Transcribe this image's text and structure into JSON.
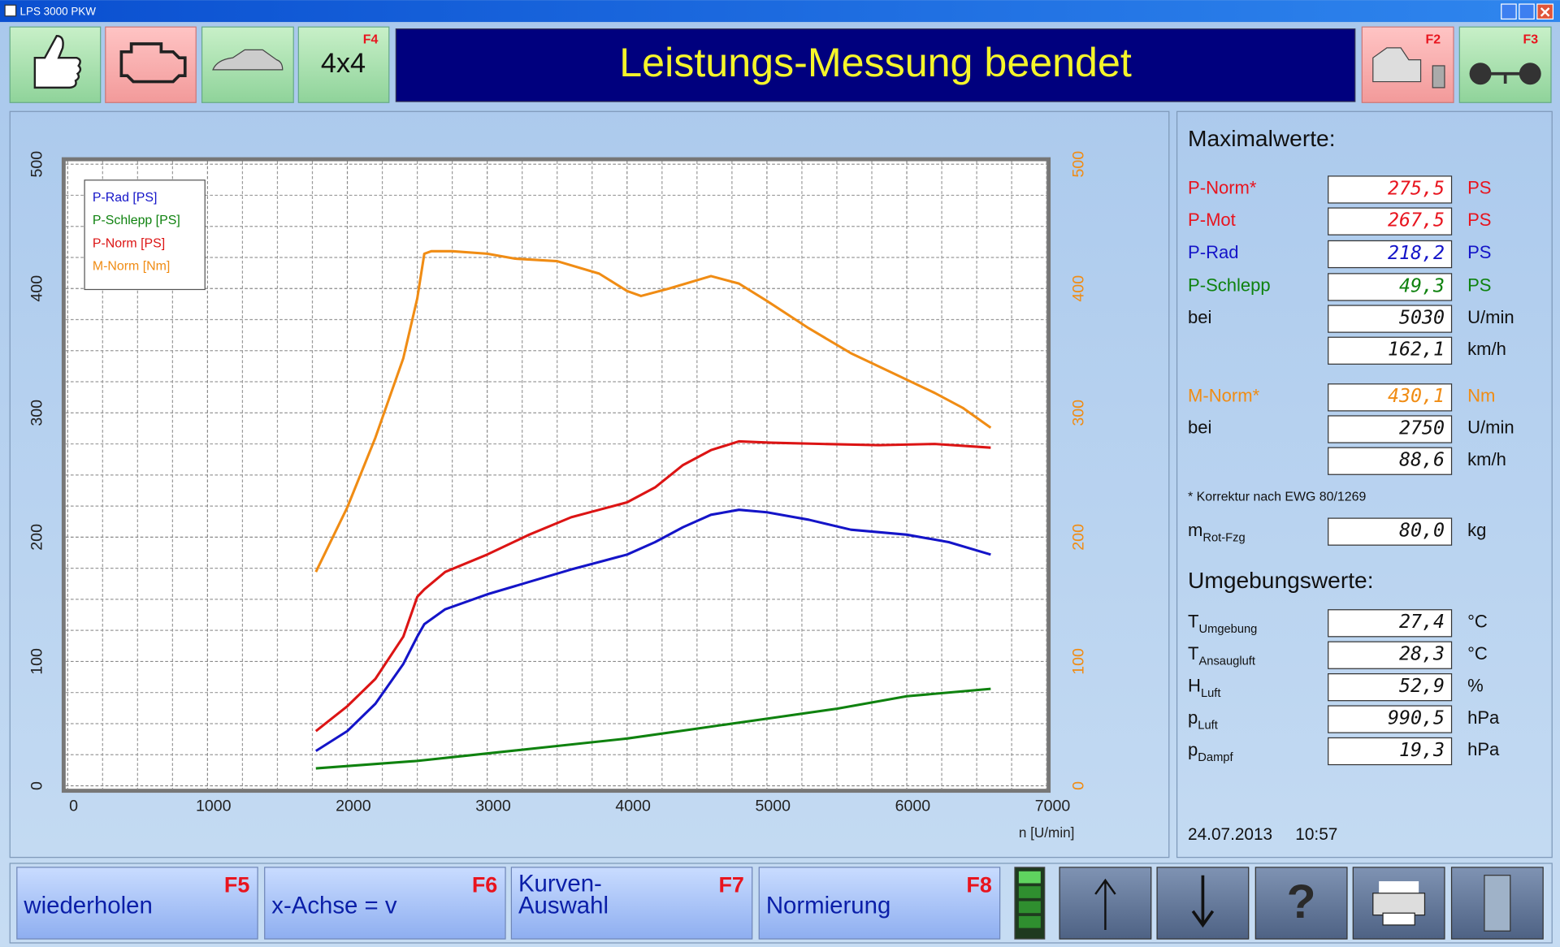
{
  "window": {
    "title": "LPS 3000 PKW"
  },
  "toolbar": {
    "f4_button": {
      "label": "4x4",
      "key": "F4"
    },
    "f2_key": "F2",
    "f3_key": "F3"
  },
  "status": "Leistungs-Messung beendet",
  "chart_data": {
    "type": "line",
    "x_label": "n [U/min]",
    "xlim": [
      0,
      7000
    ],
    "xticks": [
      0,
      1000,
      2000,
      3000,
      4000,
      5000,
      6000,
      7000
    ],
    "ylim": [
      0,
      500
    ],
    "yticks": [
      0,
      100,
      200,
      300,
      400,
      500
    ],
    "y2lim": [
      0,
      500
    ],
    "y2ticks": [
      0,
      100,
      200,
      300,
      400,
      500
    ],
    "grid": true,
    "legend": "top-left",
    "series": [
      {
        "name": "P-Rad [PS]",
        "color": "#1414c8",
        "x": [
          1775,
          2000,
          2200,
          2400,
          2500,
          2550,
          2700,
          3000,
          3300,
          3600,
          3800,
          4000,
          4200,
          4400,
          4600,
          4800,
          5000,
          5300,
          5600,
          6000,
          6300,
          6600
        ],
        "values": [
          28,
          44,
          66,
          98,
          120,
          130,
          142,
          154,
          164,
          174,
          180,
          186,
          196,
          208,
          218,
          222,
          220,
          214,
          206,
          202,
          196,
          186
        ]
      },
      {
        "name": "P-Schlepp [PS]",
        "color": "#0f820f",
        "x": [
          1775,
          2500,
          3000,
          3500,
          4000,
          4500,
          5000,
          5500,
          6000,
          6600
        ],
        "values": [
          14,
          20,
          26,
          32,
          38,
          46,
          54,
          62,
          72,
          78
        ]
      },
      {
        "name": "P-Norm [PS]",
        "color": "#dc1414",
        "x": [
          1775,
          2000,
          2200,
          2400,
          2500,
          2550,
          2700,
          3000,
          3300,
          3600,
          3800,
          4000,
          4200,
          4400,
          4600,
          4800,
          5030,
          5400,
          5800,
          6200,
          6600
        ],
        "values": [
          44,
          64,
          86,
          120,
          152,
          158,
          172,
          186,
          202,
          216,
          222,
          228,
          240,
          258,
          270,
          277,
          276,
          275,
          274,
          275,
          272
        ]
      },
      {
        "name": "M-Norm [Nm]",
        "color": "#f08c14",
        "axis": "y2",
        "x": [
          1775,
          2000,
          2200,
          2400,
          2500,
          2550,
          2600,
          2750,
          3000,
          3200,
          3500,
          3800,
          4000,
          4100,
          4300,
          4600,
          4800,
          5000,
          5300,
          5600,
          5900,
          6200,
          6400,
          6600
        ],
        "values": [
          172,
          224,
          280,
          344,
          392,
          428,
          430,
          430,
          428,
          424,
          422,
          412,
          398,
          394,
          400,
          410,
          404,
          390,
          368,
          348,
          332,
          316,
          304,
          288
        ]
      }
    ]
  },
  "max_panel": {
    "title": "Maximalwerte:",
    "rows": [
      {
        "label": "P-Norm*",
        "value": "275,5",
        "unit": "PS",
        "color": "#e8141e"
      },
      {
        "label": "P-Mot",
        "value": "267,5",
        "unit": "PS",
        "color": "#e8141e"
      },
      {
        "label": "P-Rad",
        "value": "218,2",
        "unit": "PS",
        "color": "#1414c8"
      },
      {
        "label": "P-Schlepp",
        "value": "49,3",
        "unit": "PS",
        "color": "#0f820f"
      },
      {
        "label": "bei",
        "value": "5030",
        "unit": "U/min"
      },
      {
        "value": "162,1",
        "unit": "km/h"
      },
      {
        "label": "M-Norm*",
        "value": "430,1",
        "unit": "Nm",
        "color": "#f08c14"
      },
      {
        "label": "bei",
        "value": "2750",
        "unit": "U/min"
      },
      {
        "value": "88,6",
        "unit": "km/h"
      }
    ],
    "footnote": "* Korrektur nach EWG 80/1269",
    "mass": {
      "symbol": "m",
      "subscript": "Rot-Fzg",
      "value": "80,0",
      "unit": "kg"
    }
  },
  "env_panel": {
    "title": "Umgebungswerte:",
    "rows": [
      {
        "symbol": "T",
        "subscript": "Umgebung",
        "value": "27,4",
        "unit": "°C"
      },
      {
        "symbol": "T",
        "subscript": "Ansaugluft",
        "value": "28,3",
        "unit": "°C"
      },
      {
        "symbol": "H",
        "subscript": "Luft",
        "value": "52,9",
        "unit": "%"
      },
      {
        "symbol": "p",
        "subscript": "Luft",
        "value": "990,5",
        "unit": "hPa"
      },
      {
        "symbol": "p",
        "subscript": "Dampf",
        "value": "19,3",
        "unit": "hPa"
      }
    ]
  },
  "timestamp": {
    "date": "24.07.2013",
    "time": "10:57"
  },
  "function_keys": [
    {
      "lines": [
        "wiederholen"
      ],
      "key": "F5"
    },
    {
      "lines": [
        "x-Achse = v"
      ],
      "key": "F6"
    },
    {
      "lines": [
        "Kurven-",
        "Auswahl"
      ],
      "key": "F7"
    },
    {
      "lines": [
        "Normierung"
      ],
      "key": "F8"
    }
  ]
}
